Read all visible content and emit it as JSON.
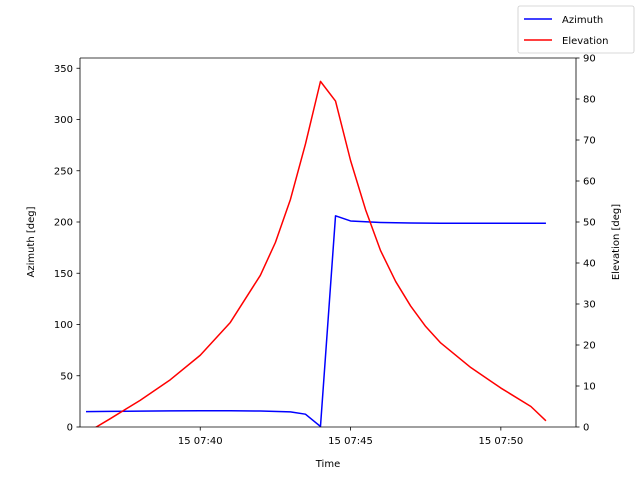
{
  "chart_data": {
    "type": "line",
    "xlabel": "Time",
    "ylabel_left": "Azimuth [deg]",
    "ylabel_right": "Elevation [deg]",
    "xlim": [
      "15 07:36:00",
      "15 07:52:30"
    ],
    "ylim_left": [
      0,
      360
    ],
    "ylim_right": [
      0,
      90
    ],
    "xticks": [
      {
        "t": "15 07:40:00",
        "label": "15 07:40"
      },
      {
        "t": "15 07:45:00",
        "label": "15 07:45"
      },
      {
        "t": "15 07:50:00",
        "label": "15 07:50"
      }
    ],
    "yticks_left": [
      0,
      50,
      100,
      150,
      200,
      250,
      300,
      350
    ],
    "yticks_right": [
      0,
      10,
      20,
      30,
      40,
      50,
      60,
      70,
      80,
      90
    ],
    "grid": false,
    "legend_position": "top-right",
    "series": [
      {
        "name": "Azimuth",
        "axis": "left",
        "color": "#0000ff",
        "points": [
          [
            "15 07:36:12",
            15
          ],
          [
            "15 07:37:00",
            15.2
          ],
          [
            "15 07:38:00",
            15.5
          ],
          [
            "15 07:39:00",
            15.7
          ],
          [
            "15 07:40:00",
            15.8
          ],
          [
            "15 07:41:00",
            15.8
          ],
          [
            "15 07:42:00",
            15.6
          ],
          [
            "15 07:43:00",
            14.8
          ],
          [
            "15 07:43:30",
            12.5
          ],
          [
            "15 07:44:00",
            0.5
          ],
          [
            "15 07:44:30",
            206
          ],
          [
            "15 07:45:00",
            201
          ],
          [
            "15 07:46:00",
            199.5
          ],
          [
            "15 07:47:00",
            199
          ],
          [
            "15 07:48:00",
            198.8
          ],
          [
            "15 07:50:00",
            198.8
          ],
          [
            "15 07:51:30",
            198.8
          ]
        ]
      },
      {
        "name": "Elevation",
        "axis": "right",
        "color": "#ff0000",
        "points": [
          [
            "15 07:36:12",
            -1.5
          ],
          [
            "15 07:37:00",
            2
          ],
          [
            "15 07:38:00",
            6.5
          ],
          [
            "15 07:39:00",
            11.5
          ],
          [
            "15 07:40:00",
            17.5
          ],
          [
            "15 07:41:00",
            25.5
          ],
          [
            "15 07:42:00",
            37
          ],
          [
            "15 07:42:30",
            45
          ],
          [
            "15 07:43:00",
            55.5
          ],
          [
            "15 07:43:30",
            69
          ],
          [
            "15 07:44:00",
            84.3
          ],
          [
            "15 07:44:30",
            79.5
          ],
          [
            "15 07:45:00",
            65
          ],
          [
            "15 07:45:30",
            53
          ],
          [
            "15 07:46:00",
            43
          ],
          [
            "15 07:46:30",
            35.5
          ],
          [
            "15 07:47:00",
            29.5
          ],
          [
            "15 07:47:30",
            24.5
          ],
          [
            "15 07:48:00",
            20.5
          ],
          [
            "15 07:49:00",
            14.5
          ],
          [
            "15 07:50:00",
            9.5
          ],
          [
            "15 07:51:00",
            5
          ],
          [
            "15 07:51:30",
            1.5
          ]
        ]
      }
    ]
  }
}
